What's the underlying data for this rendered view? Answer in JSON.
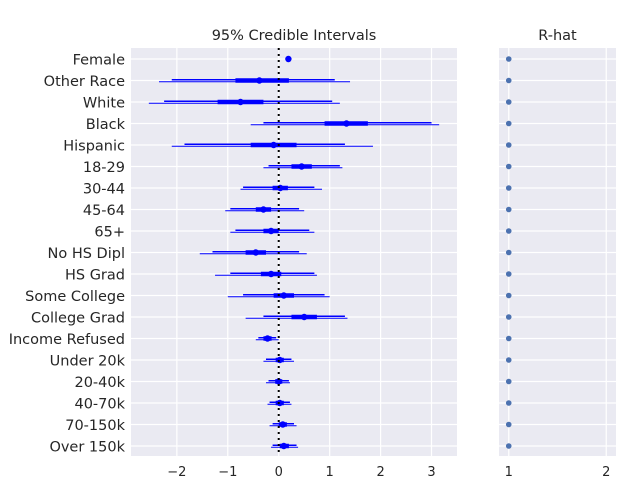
{
  "chart_data": [
    {
      "type": "forest",
      "title": "95% Credible Intervals",
      "categories": [
        "Female",
        "Other Race",
        "White",
        "Black",
        "Hispanic",
        "18-29",
        "30-44",
        "45-64",
        "65+",
        "No HS Dipl",
        "HS Grad",
        "Some College",
        "College Grad",
        "Income Refused",
        "Under 20k",
        "20-40k",
        "40-70k",
        "70-150k",
        "Over 150k"
      ],
      "xlim": [
        -2.9,
        3.5
      ],
      "xticks": [
        -2,
        -1,
        0,
        1,
        2,
        3
      ],
      "xtick_labels": [
        "−2",
        "−1",
        "0",
        "1",
        "2",
        "3"
      ],
      "reference_line": 0,
      "grid": true,
      "series": [
        {
          "rows": [
            {
              "median": 0.19,
              "iqr": [
                0.18,
                0.21
              ],
              "hdi": [
                0.17,
                0.22
              ],
              "full": [
                0.16,
                0.23
              ]
            },
            {
              "median": -0.38,
              "iqr": [
                -0.85,
                0.2
              ],
              "hdi": [
                -2.1,
                1.1
              ],
              "full": [
                -2.35,
                1.4
              ]
            },
            {
              "median": -0.75,
              "iqr": [
                -1.2,
                -0.3
              ],
              "hdi": [
                -2.25,
                1.05
              ],
              "full": [
                -2.55,
                1.2
              ]
            },
            {
              "median": 1.33,
              "iqr": [
                0.9,
                1.75
              ],
              "hdi": [
                -0.3,
                3.0
              ],
              "full": [
                -0.55,
                3.15
              ]
            },
            {
              "median": -0.1,
              "iqr": [
                -0.55,
                0.35
              ],
              "hdi": [
                -1.85,
                1.3
              ],
              "full": [
                -2.1,
                1.85
              ]
            },
            {
              "median": 0.45,
              "iqr": [
                0.25,
                0.65
              ],
              "hdi": [
                -0.2,
                1.2
              ],
              "full": [
                -0.3,
                1.25
              ]
            },
            {
              "median": 0.03,
              "iqr": [
                -0.12,
                0.18
              ],
              "hdi": [
                -0.7,
                0.7
              ],
              "full": [
                -0.75,
                0.85
              ]
            },
            {
              "median": -0.3,
              "iqr": [
                -0.45,
                -0.15
              ],
              "hdi": [
                -0.95,
                0.4
              ],
              "full": [
                -1.05,
                0.5
              ]
            },
            {
              "median": -0.15,
              "iqr": [
                -0.3,
                0.0
              ],
              "hdi": [
                -0.85,
                0.6
              ],
              "full": [
                -0.95,
                0.7
              ]
            },
            {
              "median": -0.45,
              "iqr": [
                -0.65,
                -0.25
              ],
              "hdi": [
                -1.3,
                0.4
              ],
              "full": [
                -1.55,
                0.55
              ]
            },
            {
              "median": -0.15,
              "iqr": [
                -0.35,
                0.05
              ],
              "hdi": [
                -0.95,
                0.7
              ],
              "full": [
                -1.25,
                0.75
              ]
            },
            {
              "median": 0.1,
              "iqr": [
                -0.1,
                0.3
              ],
              "hdi": [
                -0.7,
                0.9
              ],
              "full": [
                -1.0,
                1.0
              ]
            },
            {
              "median": 0.5,
              "iqr": [
                0.25,
                0.75
              ],
              "hdi": [
                -0.3,
                1.3
              ],
              "full": [
                -0.65,
                1.35
              ]
            },
            {
              "median": -0.22,
              "iqr": [
                -0.3,
                -0.14
              ],
              "hdi": [
                -0.4,
                -0.05
              ],
              "full": [
                -0.45,
                0.0
              ]
            },
            {
              "median": 0.02,
              "iqr": [
                -0.06,
                0.1
              ],
              "hdi": [
                -0.25,
                0.25
              ],
              "full": [
                -0.3,
                0.3
              ]
            },
            {
              "median": 0.0,
              "iqr": [
                -0.07,
                0.07
              ],
              "hdi": [
                -0.2,
                0.2
              ],
              "full": [
                -0.25,
                0.22
              ]
            },
            {
              "median": 0.02,
              "iqr": [
                -0.06,
                0.1
              ],
              "hdi": [
                -0.18,
                0.22
              ],
              "full": [
                -0.22,
                0.25
              ]
            },
            {
              "median": 0.08,
              "iqr": [
                0.0,
                0.16
              ],
              "hdi": [
                -0.12,
                0.3
              ],
              "full": [
                -0.18,
                0.35
              ]
            },
            {
              "median": 0.1,
              "iqr": [
                0.02,
                0.2
              ],
              "hdi": [
                -0.12,
                0.35
              ],
              "full": [
                -0.15,
                0.38
              ]
            }
          ]
        }
      ]
    },
    {
      "type": "scatter",
      "title": "R-hat",
      "xlim": [
        0.9,
        2.1
      ],
      "xticks": [
        1,
        2
      ],
      "xtick_labels": [
        "1",
        "2"
      ],
      "grid": true,
      "values": [
        1,
        1,
        1,
        1,
        1,
        1,
        1,
        1,
        1,
        1,
        1,
        1,
        1,
        1,
        1,
        1,
        1,
        1,
        1
      ]
    }
  ],
  "colors": {
    "interval": "#0000ff",
    "rhat_point": "#4c72b0",
    "panel_bg": "#eaeaf2",
    "grid": "#ffffff",
    "text": "#262626",
    "reference": "#000000"
  }
}
